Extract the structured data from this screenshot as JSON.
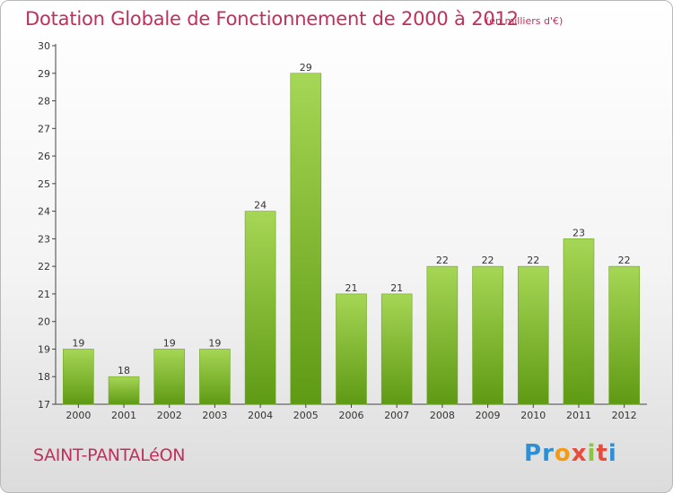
{
  "header": {
    "title": "Dotation Globale de Fonctionnement de 2000 à 2012",
    "unit": "(en milliers d'€)"
  },
  "footer": {
    "commune": "SAINT-PANTALéON",
    "logo_letters": [
      "P",
      "r",
      "o",
      "x",
      "i",
      "t",
      "i"
    ],
    "logo_colors": [
      "#2f8fd3",
      "#2f8fd3",
      "#f39c12",
      "#e74c3c",
      "#8cc63f",
      "#e74c3c",
      "#2f8fd3"
    ]
  },
  "colors": {
    "accent": "#c0305b",
    "bar_top": "#a6d655",
    "bar_bottom": "#5f9a14",
    "axis": "#444444"
  },
  "chart_data": {
    "type": "bar",
    "categories": [
      "2000",
      "2001",
      "2002",
      "2003",
      "2004",
      "2005",
      "2006",
      "2007",
      "2008",
      "2009",
      "2010",
      "2011",
      "2012"
    ],
    "values": [
      19,
      18,
      19,
      19,
      24,
      29,
      21,
      21,
      22,
      22,
      22,
      23,
      22
    ],
    "data_labels": [
      "19",
      "18",
      "19",
      "19",
      "24",
      "29",
      "21",
      "21",
      "22",
      "22",
      "22",
      "23",
      "22"
    ],
    "yticks": [
      "17",
      "18",
      "19",
      "20",
      "21",
      "22",
      "23",
      "24",
      "25",
      "26",
      "27",
      "28",
      "29",
      "30"
    ],
    "ylim": [
      17,
      30
    ],
    "grid": false,
    "title": "Dotation Globale de Fonctionnement de 2000 à 2012",
    "xlabel": "",
    "ylabel": ""
  }
}
